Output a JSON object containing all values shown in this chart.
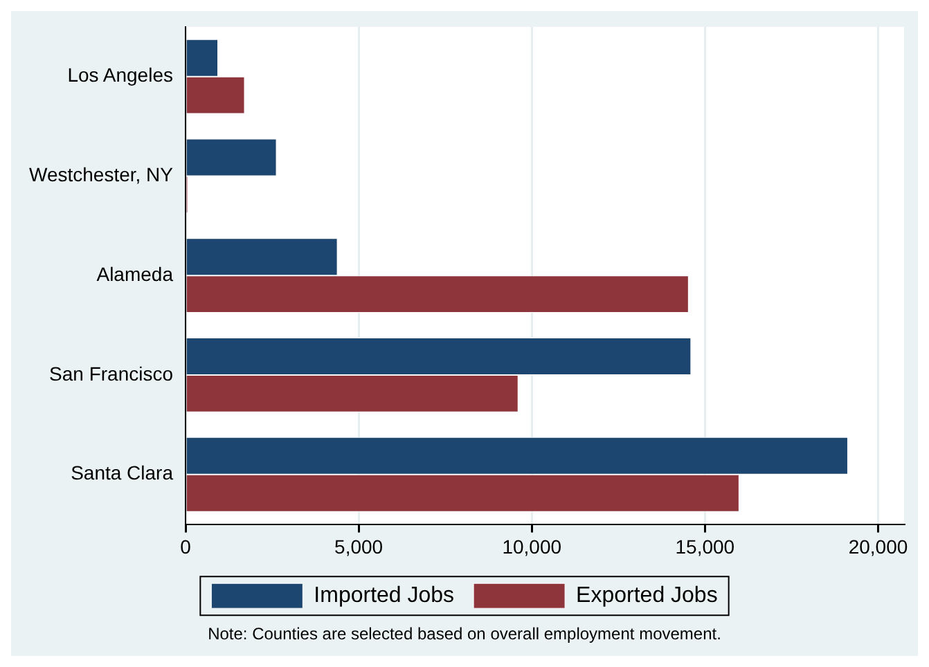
{
  "chart_data": {
    "type": "bar",
    "orientation": "horizontal",
    "categories": [
      "Los Angeles",
      "Westchester, NY",
      "Alameda",
      "San Francisco",
      "Santa Clara"
    ],
    "series": [
      {
        "name": "Imported Jobs",
        "color": "#1c4670",
        "values": [
          940,
          2630,
          4390,
          14600,
          19130
        ]
      },
      {
        "name": "Exported Jobs",
        "color": "#8e353c",
        "values": [
          1710,
          70,
          14530,
          9610,
          15990
        ]
      }
    ],
    "xlim": [
      0,
      20750
    ],
    "xticks": [
      {
        "value": 0,
        "label": "0"
      },
      {
        "value": 5000,
        "label": "5,000"
      },
      {
        "value": 10000,
        "label": "10,000"
      },
      {
        "value": 15000,
        "label": "15,000"
      },
      {
        "value": 20000,
        "label": "20,000"
      }
    ],
    "grid": "x",
    "legend": "bottom",
    "annotations": [
      "Note: Counties are selected based on overall employment movement."
    ]
  }
}
